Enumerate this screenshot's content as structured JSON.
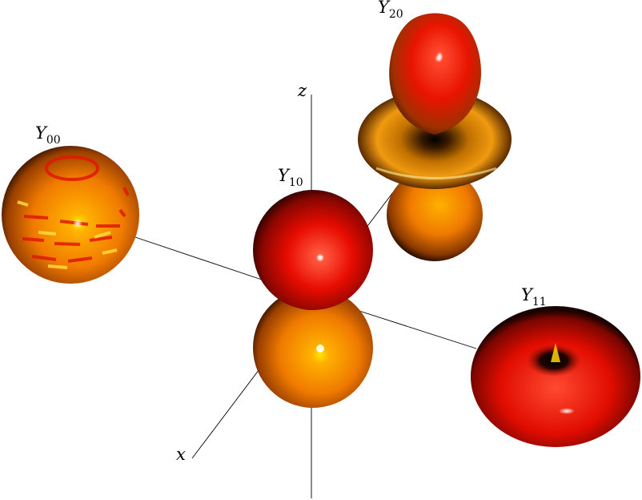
{
  "axes": {
    "x_label": "x",
    "z_label": "z"
  },
  "harmonics": {
    "y00": {
      "letter": "Y",
      "index": "00"
    },
    "y10": {
      "letter": "Y",
      "index": "10"
    },
    "y20": {
      "letter": "Y",
      "index": "20"
    },
    "y11": {
      "letter": "Y",
      "index": "11"
    }
  },
  "colors": {
    "red": "#e80c00",
    "orange": "#f07a00",
    "yellow": "#ffe600",
    "dark": "#140800"
  }
}
